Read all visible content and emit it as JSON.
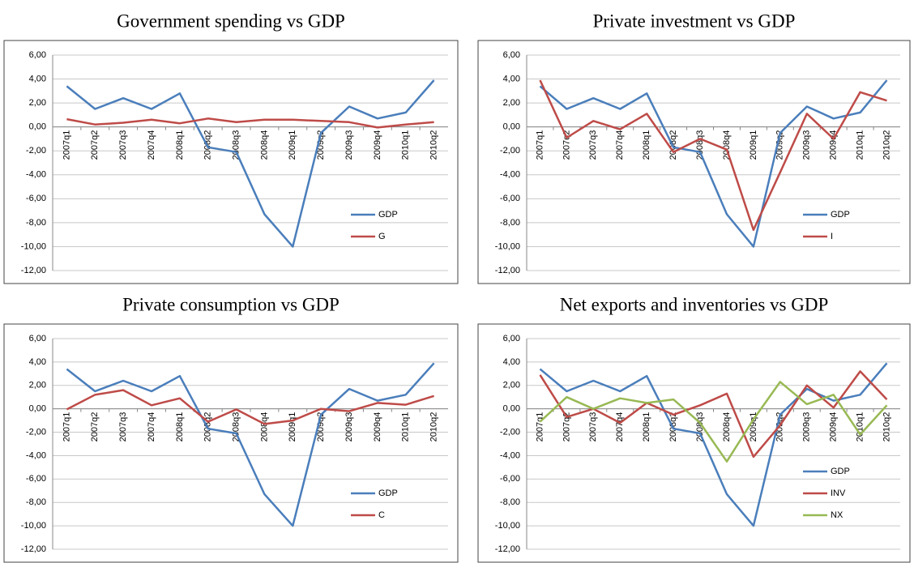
{
  "chart_data": [
    {
      "type": "line",
      "title": "Government spending vs GDP",
      "categories": [
        "2007q1",
        "2007q2",
        "2007q3",
        "2007q4",
        "2008q1",
        "2008q2",
        "2008q3",
        "2008q4",
        "2009q1",
        "2009q2",
        "2009q3",
        "2009q4",
        "2010q1",
        "2010q2"
      ],
      "series": [
        {
          "name": "GDP",
          "color": "#4a7ebb",
          "values": [
            3.4,
            1.5,
            2.4,
            1.5,
            2.8,
            -1.7,
            -2.1,
            -7.3,
            -10.0,
            -0.5,
            1.7,
            0.7,
            1.2,
            3.9
          ]
        },
        {
          "name": "G",
          "color": "#be4b48",
          "values": [
            0.65,
            0.2,
            0.35,
            0.6,
            0.3,
            0.7,
            0.4,
            0.6,
            0.6,
            0.5,
            0.4,
            -0.05,
            0.2,
            0.4
          ]
        }
      ],
      "ylim": [
        -12,
        6
      ],
      "yticks": [
        {
          "value": -12,
          "label": "-12,00"
        },
        {
          "value": -10,
          "label": "-10,00"
        },
        {
          "value": -8,
          "label": "-8,00"
        },
        {
          "value": -6,
          "label": "-6,00"
        },
        {
          "value": -4,
          "label": "-4,00"
        },
        {
          "value": -2,
          "label": "-2,00"
        },
        {
          "value": 0,
          "label": "0,00"
        },
        {
          "value": 2,
          "label": "2,00"
        },
        {
          "value": 4,
          "label": "4,00"
        },
        {
          "value": 6,
          "label": "6,00"
        }
      ],
      "grid": true,
      "legend": "lower right"
    },
    {
      "type": "line",
      "title": "Private investment vs GDP",
      "categories": [
        "2007q1",
        "2007q2",
        "2007q3",
        "2007q4",
        "2008q1",
        "2008q2",
        "2008q3",
        "2008q4",
        "2009q1",
        "2009q2",
        "2009q3",
        "2009q4",
        "2010q1",
        "2010q2"
      ],
      "series": [
        {
          "name": "GDP",
          "color": "#4a7ebb",
          "values": [
            3.4,
            1.5,
            2.4,
            1.5,
            2.8,
            -1.7,
            -2.1,
            -7.3,
            -10.0,
            -0.5,
            1.7,
            0.7,
            1.2,
            3.9
          ]
        },
        {
          "name": "I",
          "color": "#be4b48",
          "values": [
            3.9,
            -0.9,
            0.5,
            -0.2,
            1.1,
            -2.1,
            -1.0,
            -1.9,
            -8.6,
            -3.8,
            1.1,
            -1.0,
            2.9,
            2.2
          ]
        }
      ],
      "ylim": [
        -12,
        6
      ],
      "yticks": [
        {
          "value": -12,
          "label": "-12,00"
        },
        {
          "value": -10,
          "label": "-10,00"
        },
        {
          "value": -8,
          "label": "-8,00"
        },
        {
          "value": -6,
          "label": "-6,00"
        },
        {
          "value": -4,
          "label": "-4,00"
        },
        {
          "value": -2,
          "label": "-2,00"
        },
        {
          "value": 0,
          "label": "0,00"
        },
        {
          "value": 2,
          "label": "2,00"
        },
        {
          "value": 4,
          "label": "4,00"
        },
        {
          "value": 6,
          "label": "6,00"
        }
      ],
      "grid": true,
      "legend": "lower right"
    },
    {
      "type": "line",
      "title": "Private consumption vs GDP",
      "categories": [
        "2007q1",
        "2007q2",
        "2007q3",
        "2007q4",
        "2008q1",
        "2008q2",
        "2008q3",
        "2008q4",
        "2009q1",
        "2009q2",
        "2009q3",
        "2009q4",
        "2010q1",
        "2010q2"
      ],
      "series": [
        {
          "name": "GDP",
          "color": "#4a7ebb",
          "values": [
            3.4,
            1.5,
            2.4,
            1.5,
            2.8,
            -1.7,
            -2.1,
            -7.3,
            -10.0,
            -0.5,
            1.7,
            0.7,
            1.2,
            3.9
          ]
        },
        {
          "name": "C",
          "color": "#be4b48",
          "values": [
            -0.05,
            1.2,
            1.6,
            0.3,
            0.9,
            -1.1,
            -0.05,
            -1.3,
            -1.0,
            0.0,
            -0.2,
            0.5,
            0.35,
            1.1
          ]
        }
      ],
      "ylim": [
        -12,
        6
      ],
      "yticks": [
        {
          "value": -12,
          "label": "-12,00"
        },
        {
          "value": -10,
          "label": "-10,00"
        },
        {
          "value": -8,
          "label": "-8,00"
        },
        {
          "value": -6,
          "label": "-6,00"
        },
        {
          "value": -4,
          "label": "-4,00"
        },
        {
          "value": -2,
          "label": "-2,00"
        },
        {
          "value": 0,
          "label": "0,00"
        },
        {
          "value": 2,
          "label": "2,00"
        },
        {
          "value": 4,
          "label": "4,00"
        },
        {
          "value": 6,
          "label": "6,00"
        }
      ],
      "grid": true,
      "legend": "lower right"
    },
    {
      "type": "line",
      "title": "Net exports and inventories vs GDP",
      "categories": [
        "2007q1",
        "2007q2",
        "2007q3",
        "2007q4",
        "2008q1",
        "2008q2",
        "2008q3",
        "2008q4",
        "2009q1",
        "2009q2",
        "2009q3",
        "2009q4",
        "2010q1",
        "2010q2"
      ],
      "series": [
        {
          "name": "GDP",
          "color": "#4a7ebb",
          "values": [
            3.4,
            1.5,
            2.4,
            1.5,
            2.8,
            -1.7,
            -2.1,
            -7.3,
            -10.0,
            -0.5,
            1.7,
            0.7,
            1.2,
            3.9
          ]
        },
        {
          "name": "INV",
          "color": "#be4b48",
          "values": [
            2.9,
            -0.7,
            0.0,
            -1.2,
            0.5,
            -0.5,
            0.3,
            1.3,
            -4.1,
            -1.4,
            2.0,
            0.1,
            3.2,
            0.8
          ]
        },
        {
          "name": "NX",
          "color": "#98b954",
          "values": [
            -1.1,
            1.0,
            0.0,
            0.9,
            0.5,
            0.8,
            -1.2,
            -4.5,
            -0.9,
            2.3,
            0.4,
            1.2,
            -2.2,
            0.3
          ]
        }
      ],
      "ylim": [
        -12,
        6
      ],
      "yticks": [
        {
          "value": -12,
          "label": "-12,00"
        },
        {
          "value": -10,
          "label": "-10,00"
        },
        {
          "value": -8,
          "label": "-8,00"
        },
        {
          "value": -6,
          "label": "-6,00"
        },
        {
          "value": -4,
          "label": "-4,00"
        },
        {
          "value": -2,
          "label": "-2,00"
        },
        {
          "value": 0,
          "label": "0,00"
        },
        {
          "value": 2,
          "label": "2,00"
        },
        {
          "value": 4,
          "label": "4,00"
        },
        {
          "value": 6,
          "label": "6,00"
        }
      ],
      "grid": true,
      "legend": "lower right"
    }
  ]
}
